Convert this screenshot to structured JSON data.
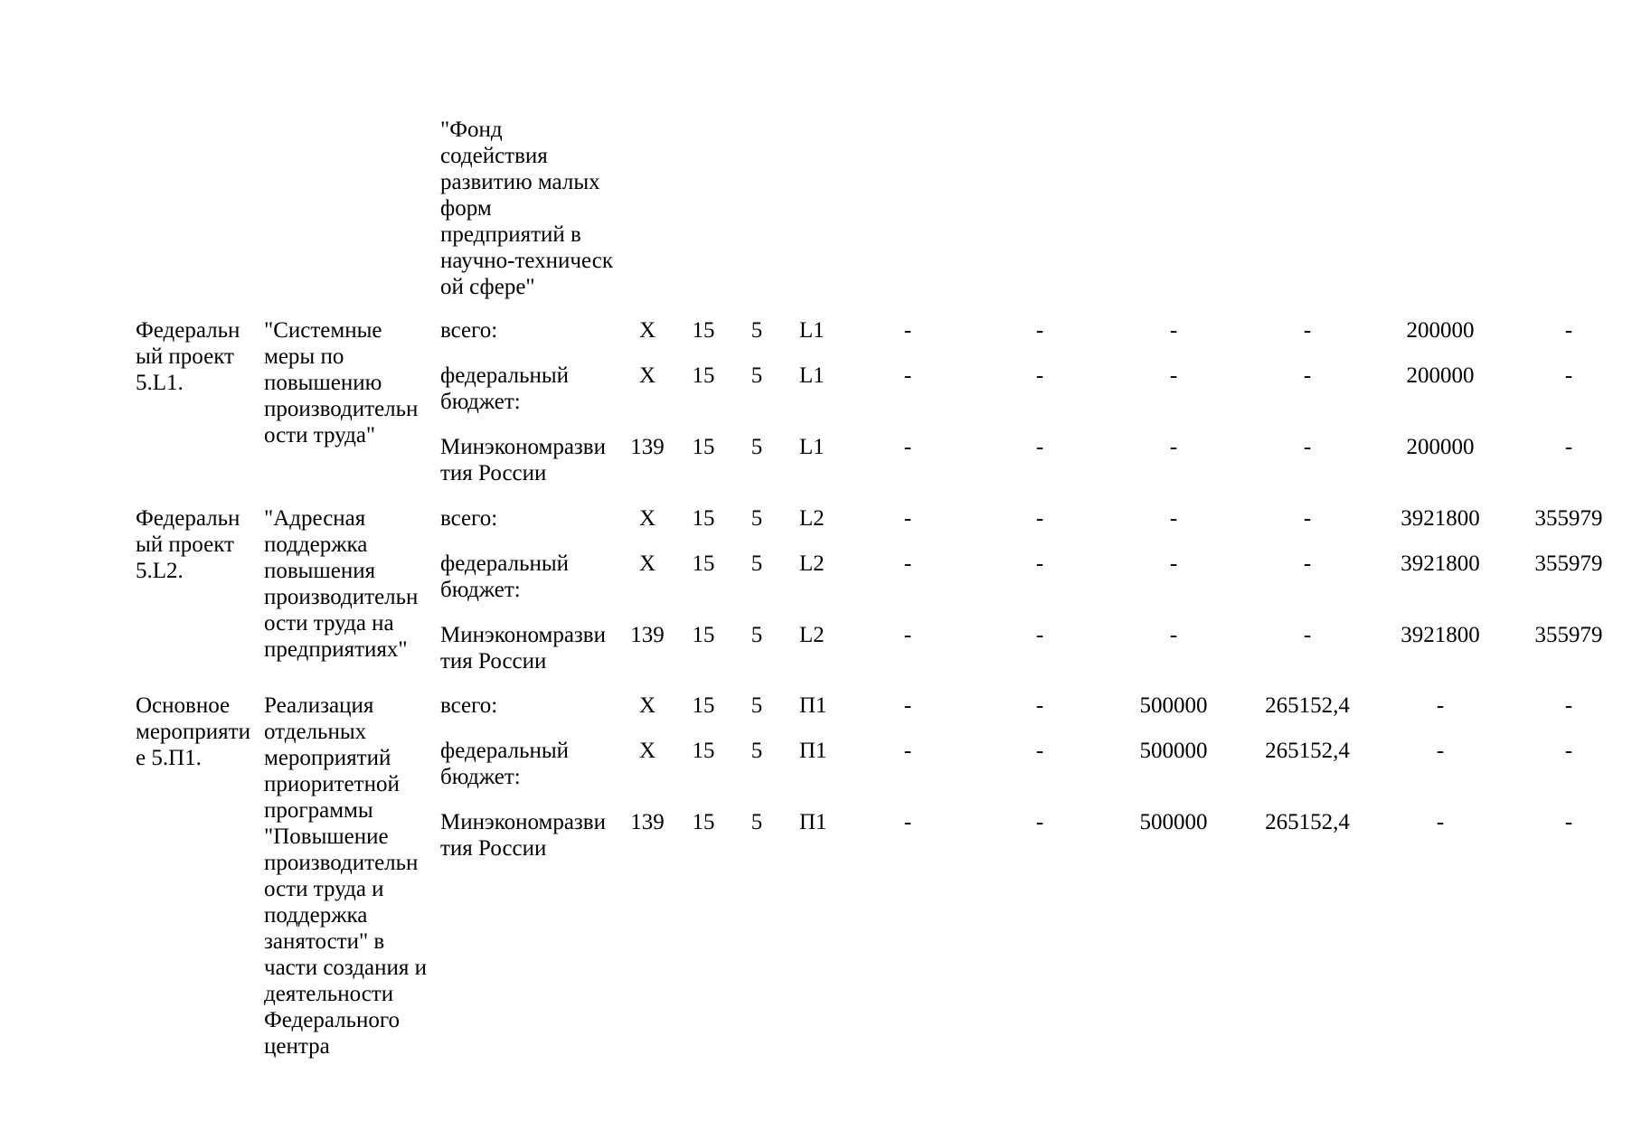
{
  "header_cell": "\"Фонд\nсодействия\nразвитию малых\nформ\nпредприятий в\nнаучно-техническ\nой сфере\"",
  "groups": [
    {
      "code": "Федеральн\nый проект\n5.L1.",
      "name": "\"Системные\nмеры по\nповышению\nпроизводительн\nости труда\"",
      "rows": [
        {
          "source": "всего:",
          "grbs": "X",
          "rz": "15",
          "pr": "5",
          "cs": "L1",
          "values": [
            "-",
            "-",
            "-",
            "-",
            "200000",
            "-"
          ]
        },
        {
          "source": "федеральный\nбюджет:",
          "grbs": "X",
          "rz": "15",
          "pr": "5",
          "cs": "L1",
          "values": [
            "-",
            "-",
            "-",
            "-",
            "200000",
            "-"
          ]
        },
        {
          "source": "Минэкономразви\nтия России",
          "grbs": "139",
          "rz": "15",
          "pr": "5",
          "cs": "L1",
          "values": [
            "-",
            "-",
            "-",
            "-",
            "200000",
            "-"
          ]
        }
      ]
    },
    {
      "code": "Федеральн\nый проект\n5.L2.",
      "name": "\"Адресная\nподдержка\nповышения\nпроизводительн\nости труда на\nпредприятиях\"",
      "rows": [
        {
          "source": "всего:",
          "grbs": "X",
          "rz": "15",
          "pr": "5",
          "cs": "L2",
          "values": [
            "-",
            "-",
            "-",
            "-",
            "3921800",
            "355979"
          ]
        },
        {
          "source": "федеральный\nбюджет:",
          "grbs": "X",
          "rz": "15",
          "pr": "5",
          "cs": "L2",
          "values": [
            "-",
            "-",
            "-",
            "-",
            "3921800",
            "355979"
          ]
        },
        {
          "source": "Минэкономразви\nтия России",
          "grbs": "139",
          "rz": "15",
          "pr": "5",
          "cs": "L2",
          "values": [
            "-",
            "-",
            "-",
            "-",
            "3921800",
            "355979"
          ]
        }
      ]
    },
    {
      "code": "Основное\nмероприяти\nе 5.П1.",
      "name": "Реализация\nотдельных\nмероприятий\nприоритетной\nпрограммы\n\"Повышение\nпроизводительн\nости труда и\nподдержка\nзанятости\" в\nчасти создания и\nдеятельности\nФедерального\nцентра",
      "rows": [
        {
          "source": "всего:",
          "grbs": "X",
          "rz": "15",
          "pr": "5",
          "cs": "П1",
          "values": [
            "-",
            "-",
            "500000",
            "265152,4",
            "-",
            "-"
          ]
        },
        {
          "source": "федеральный\nбюджет:",
          "grbs": "X",
          "rz": "15",
          "pr": "5",
          "cs": "П1",
          "values": [
            "-",
            "-",
            "500000",
            "265152,4",
            "-",
            "-"
          ]
        },
        {
          "source": "Минэкономразви\nтия России",
          "grbs": "139",
          "rz": "15",
          "pr": "5",
          "cs": "П1",
          "values": [
            "-",
            "-",
            "500000",
            "265152,4",
            "-",
            "-"
          ]
        }
      ]
    }
  ]
}
